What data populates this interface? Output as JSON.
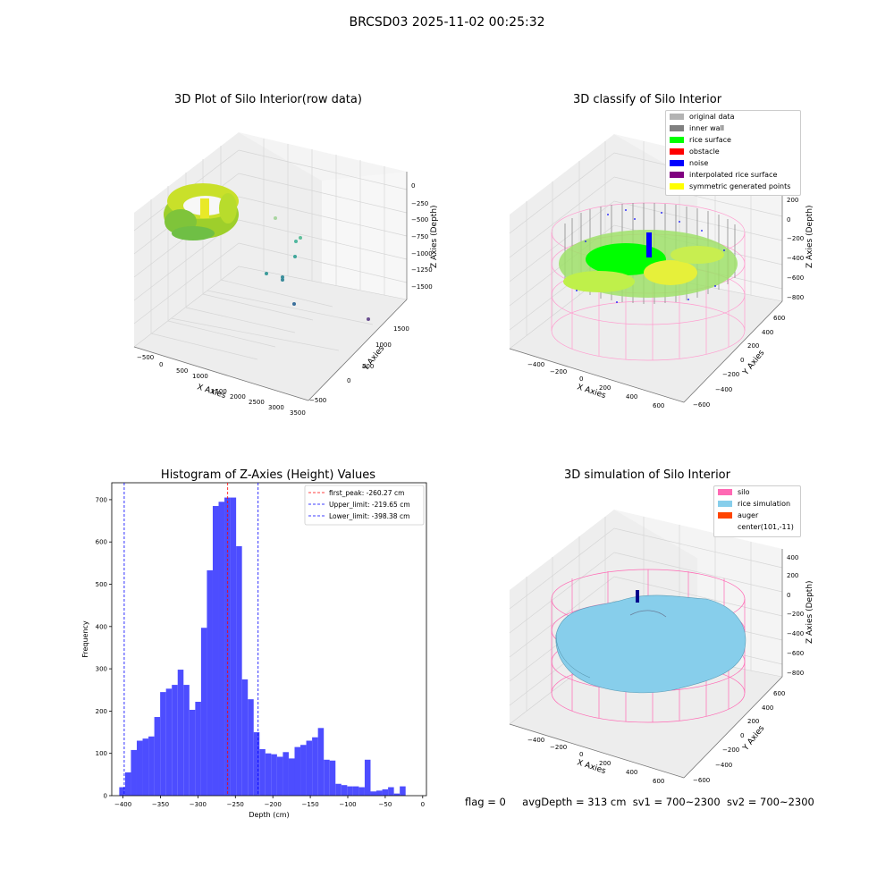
{
  "suptitle": "BRCSD03 2025-11-02 00:25:32",
  "panels": {
    "raw": {
      "title": "3D Plot of Silo Interior(row data)",
      "xlabel": "X Axies",
      "ylabel": "Y Axies",
      "zlabel": "Z Axies (Depth)",
      "xticks": [
        "−500",
        "0",
        "500",
        "1000",
        "1500",
        "2000",
        "2500",
        "3000",
        "3500"
      ],
      "yticks": [
        "−500",
        "0",
        "500",
        "1000",
        "1500"
      ],
      "zticks": [
        "0",
        "−250",
        "−500",
        "−750",
        "−1000",
        "−1250",
        "−1500"
      ]
    },
    "classify": {
      "title": "3D classify of Silo Interior",
      "xlabel": "X Axies",
      "ylabel": "Y Axies",
      "zlabel": "Z Axies (Depth)",
      "xticks": [
        "−400",
        "−200",
        "0",
        "200",
        "400",
        "600"
      ],
      "yticks": [
        "−600",
        "−400",
        "−200",
        "0",
        "200",
        "400",
        "600"
      ],
      "zticks": [
        "400",
        "200",
        "0",
        "−200",
        "−400",
        "−600",
        "−800"
      ],
      "legend": [
        {
          "label": "original data",
          "color": "#b3b3b3"
        },
        {
          "label": "inner wall",
          "color": "#808080"
        },
        {
          "label": "rice surface",
          "color": "#00ff00"
        },
        {
          "label": "obstacle",
          "color": "#ff0000"
        },
        {
          "label": "noise",
          "color": "#0000ff"
        },
        {
          "label": "interpolated rice surface",
          "color": "#800080"
        },
        {
          "label": "symmetric generated points",
          "color": "#ffff00"
        }
      ]
    },
    "simulation": {
      "title": "3D simulation of Silo Interior",
      "xlabel": "X Axies",
      "ylabel": "Y Axies",
      "zlabel": "Z Axies (Depth)",
      "xticks": [
        "−400",
        "−200",
        "0",
        "200",
        "400",
        "600"
      ],
      "yticks": [
        "−600",
        "−400",
        "−200",
        "0",
        "200",
        "400",
        "600"
      ],
      "zticks": [
        "400",
        "200",
        "0",
        "−200",
        "−400",
        "−600",
        "−800"
      ],
      "legend": [
        {
          "label": "silo",
          "color": "#ff69b4"
        },
        {
          "label": "rice simulation",
          "color": "#87ceeb"
        },
        {
          "label": "auger",
          "color": "#ff4500"
        },
        {
          "label": "center(101,-11)",
          "color": ""
        }
      ]
    }
  },
  "chart_data": [
    {
      "type": "bar",
      "title": "Histogram of Z-Axies (Height) Values",
      "xlabel": "Depth (cm)",
      "ylabel": "Frequency",
      "bin_width": 7.8,
      "bin_start": -405,
      "values": [
        20,
        55,
        108,
        130,
        135,
        140,
        186,
        245,
        253,
        262,
        298,
        262,
        203,
        222,
        397,
        533,
        685,
        695,
        705,
        705,
        590,
        275,
        228,
        150,
        110,
        100,
        98,
        92,
        103,
        88,
        115,
        120,
        130,
        138,
        160,
        85,
        83,
        28,
        25,
        22,
        22,
        20,
        85,
        10,
        12,
        15,
        20,
        5,
        22
      ],
      "xlim": [
        -415,
        5
      ],
      "ylim": [
        0,
        740
      ],
      "xticks": [
        -400,
        -350,
        -300,
        -250,
        -200,
        -150,
        -100,
        -50,
        0
      ],
      "yticks": [
        0,
        100,
        200,
        300,
        400,
        500,
        600,
        700
      ],
      "bar_color": "#4d4dff",
      "grid": false,
      "legend_position": "upper right",
      "lines": [
        {
          "label": "first_peak: -260.27 cm",
          "x": -260.27,
          "color": "#ff0000"
        },
        {
          "label": "Upper_limit: -219.65 cm",
          "x": -219.65,
          "color": "#0000ff"
        },
        {
          "label": "Lower_limit: -398.38 cm",
          "x": -398.38,
          "color": "#0000ff"
        }
      ]
    }
  ],
  "footer": {
    "flag": "flag = 0",
    "avg": "avgDepth = 313 cm",
    "sv1": "sv1 = 700~2300",
    "sv2": "sv2 = 700~2300"
  }
}
